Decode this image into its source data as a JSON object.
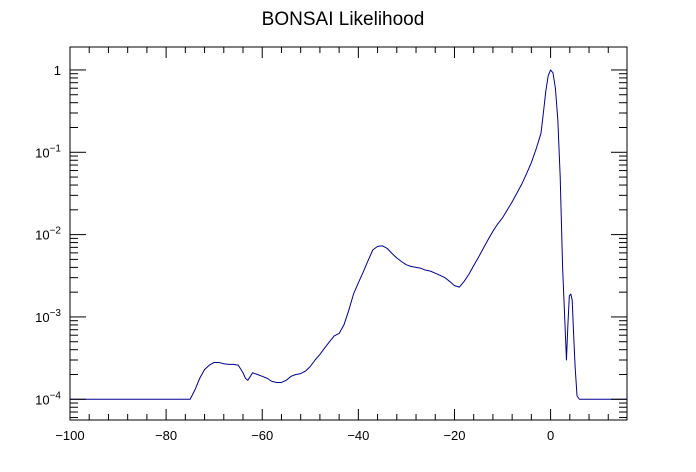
{
  "chart_data": {
    "type": "line",
    "title": "BONSAI Likelihood",
    "xlabel": "",
    "ylabel": "",
    "xlim": [
      -100,
      15.9
    ],
    "ylim": [
      5.6e-05,
      1.9
    ],
    "yscale": "log",
    "grid": false,
    "legend": "none",
    "line_color": "#00008b",
    "x_ticks": [
      {
        "value": -100,
        "label": "−100"
      },
      {
        "value": -80,
        "label": "−80"
      },
      {
        "value": -60,
        "label": "−60"
      },
      {
        "value": -40,
        "label": "−40"
      },
      {
        "value": -20,
        "label": "−20"
      },
      {
        "value": 0,
        "label": "0"
      }
    ],
    "y_ticks": [
      {
        "value": 0.0001,
        "base": "10",
        "exp": "−4"
      },
      {
        "value": 0.001,
        "base": "10",
        "exp": "−3"
      },
      {
        "value": 0.01,
        "base": "10",
        "exp": "−2"
      },
      {
        "value": 0.1,
        "base": "10",
        "exp": "−1"
      },
      {
        "value": 1,
        "base": "1",
        "exp": ""
      }
    ],
    "series": [
      {
        "x": [
          -100,
          -75,
          -74,
          -73,
          -72,
          -71,
          -70,
          -69,
          -68,
          -67,
          -66,
          -65,
          -64,
          -63.5,
          -63,
          -62,
          -61,
          -60,
          -59,
          -58,
          -57,
          -56,
          -55,
          -54,
          -53,
          -52,
          -51,
          -50,
          -49,
          -48,
          -47,
          -46,
          -45,
          -44,
          -43,
          -42,
          -41,
          -40,
          -39,
          -38,
          -37,
          -36,
          -35,
          -34,
          -33,
          -32,
          -31,
          -30,
          -29,
          -28,
          -27,
          -26,
          -25,
          -24,
          -23,
          -22,
          -21,
          -20,
          -19,
          -18,
          -17,
          -16,
          -15,
          -14,
          -13,
          -12,
          -11,
          -10,
          -9,
          -8,
          -7,
          -6,
          -5,
          -4,
          -3,
          -2,
          -1.5,
          -1,
          -0.5,
          0,
          0.5,
          1,
          1.5,
          2,
          2.5,
          3,
          3.3,
          3.6,
          3.9,
          4.2,
          4.5,
          4.8,
          5.1,
          5.5,
          6,
          8,
          15.9
        ],
        "y": [
          0.0001,
          0.0001,
          0.00013,
          0.00018,
          0.00023,
          0.00026,
          0.00028,
          0.00028,
          0.00027,
          0.000265,
          0.000265,
          0.00026,
          0.00021,
          0.00018,
          0.00017,
          0.00021,
          0.0002,
          0.00019,
          0.00018,
          0.000165,
          0.00016,
          0.00016,
          0.00017,
          0.00019,
          0.0002,
          0.000205,
          0.00022,
          0.00025,
          0.0003,
          0.00035,
          0.00042,
          0.0005,
          0.00059,
          0.00063,
          0.0008,
          0.0012,
          0.0019,
          0.0026,
          0.0035,
          0.0048,
          0.0065,
          0.0072,
          0.0073,
          0.0068,
          0.0059,
          0.0052,
          0.0047,
          0.0043,
          0.0041,
          0.004,
          0.0039,
          0.0037,
          0.0036,
          0.0034,
          0.0032,
          0.003,
          0.0027,
          0.0024,
          0.0023,
          0.0027,
          0.0033,
          0.0042,
          0.0053,
          0.0068,
          0.0087,
          0.011,
          0.0135,
          0.016,
          0.02,
          0.025,
          0.032,
          0.041,
          0.055,
          0.075,
          0.11,
          0.17,
          0.3,
          0.55,
          0.85,
          1.0,
          0.92,
          0.6,
          0.25,
          0.05,
          0.004,
          0.0008,
          0.0003,
          0.0008,
          0.0018,
          0.0019,
          0.0016,
          0.0006,
          0.00025,
          0.00011,
          0.0001,
          0.0001,
          0.0001
        ]
      }
    ]
  }
}
